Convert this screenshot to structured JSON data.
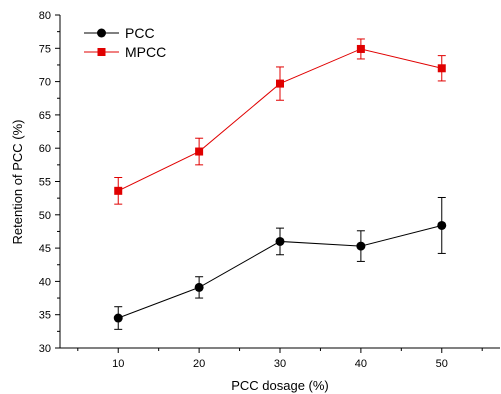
{
  "chart_data": {
    "type": "line",
    "xlabel": "PCC dosage (%)",
    "ylabel": "Retention of PCC (%)",
    "xlim": [
      2.8,
      57.2
    ],
    "ylim": [
      30,
      80
    ],
    "x": [
      10,
      20,
      30,
      40,
      50
    ],
    "xticks": [
      "10",
      "20",
      "30",
      "40",
      "50"
    ],
    "yticks": [
      "30",
      "35",
      "40",
      "45",
      "50",
      "55",
      "60",
      "65",
      "70",
      "75",
      "80"
    ],
    "grid": false,
    "legend_position": "top-left",
    "series": [
      {
        "name": "PCC",
        "color": "#000000",
        "marker": "circle",
        "values": [
          34.5,
          39.1,
          46.0,
          45.3,
          48.4
        ],
        "errors": [
          1.7,
          1.6,
          2.0,
          2.3,
          4.2
        ]
      },
      {
        "name": "MPCC",
        "color": "#e00000",
        "marker": "square",
        "values": [
          53.6,
          59.5,
          69.7,
          74.9,
          72.0
        ],
        "errors": [
          2.0,
          2.0,
          2.5,
          1.5,
          1.9
        ]
      }
    ]
  }
}
